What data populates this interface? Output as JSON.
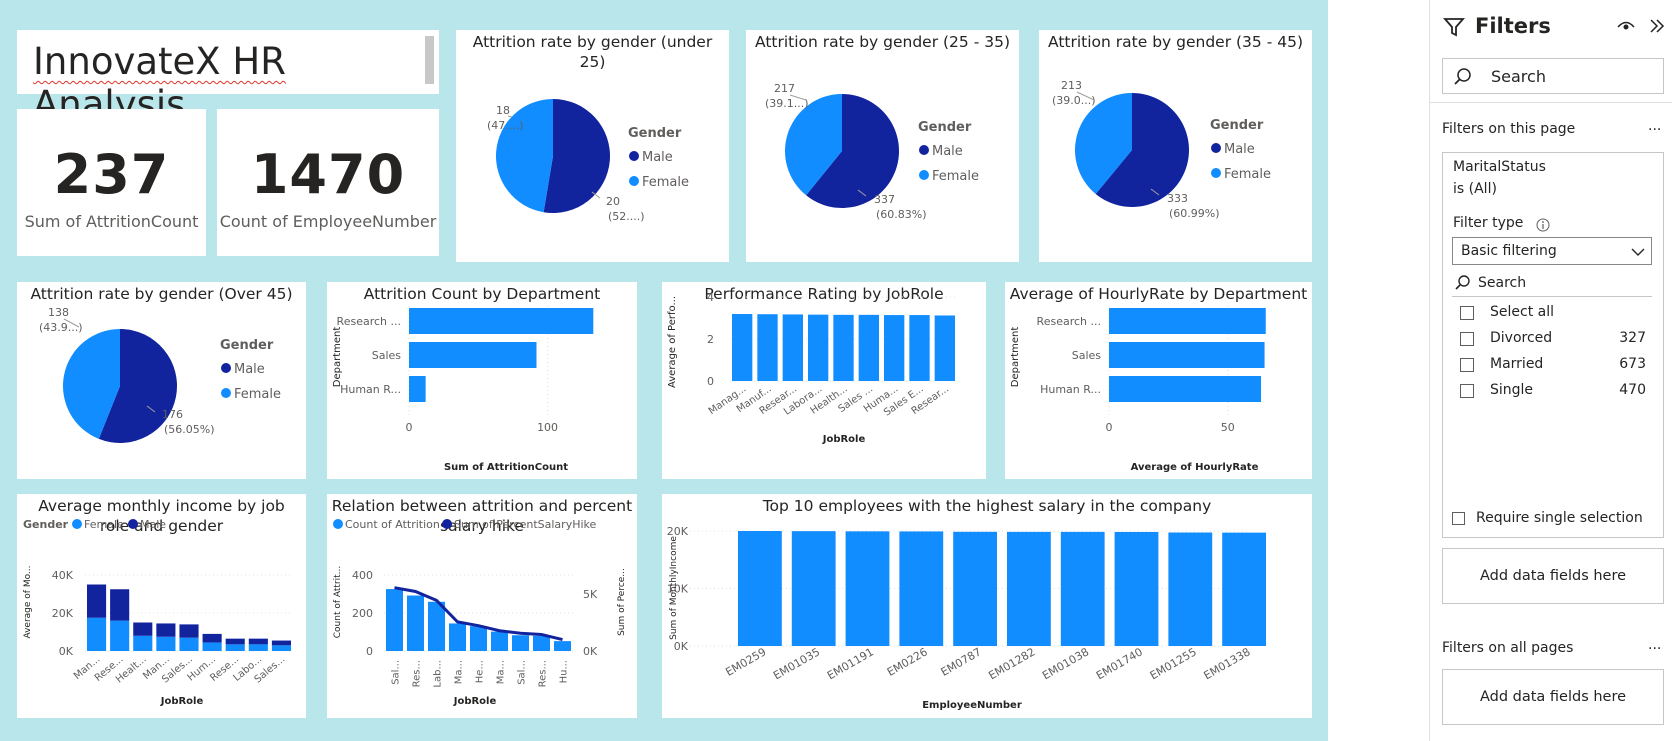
{
  "report": {
    "title": "InnovateX HR Analysis"
  },
  "kpis": [
    {
      "value": "237",
      "label": "Sum of AttritionCount"
    },
    {
      "value": "1470",
      "label": "Count of EmployeeNumber"
    }
  ],
  "pies": [
    {
      "title": "Attrition rate by gender (under 25)",
      "legend_title": "Gender",
      "legend": [
        "Male",
        "Female"
      ],
      "slices": [
        {
          "name": "Male",
          "value": 20,
          "label1": "20",
          "label2": "(52....)"
        },
        {
          "name": "Female",
          "value": 18,
          "label1": "18",
          "label2": "(47....)"
        }
      ]
    },
    {
      "title": "Attrition rate by gender (25 - 35)",
      "legend_title": "Gender",
      "legend": [
        "Male",
        "Female"
      ],
      "slices": [
        {
          "name": "Male",
          "value": 337,
          "label1": "337",
          "label2": "(60.83%)"
        },
        {
          "name": "Female",
          "value": 217,
          "label1": "217",
          "label2": "(39.1...)"
        }
      ]
    },
    {
      "title": "Attrition rate by gender (35 - 45)",
      "legend_title": "Gender",
      "legend": [
        "Male",
        "Female"
      ],
      "slices": [
        {
          "name": "Male",
          "value": 333,
          "label1": "333",
          "label2": "(60.99%)"
        },
        {
          "name": "Female",
          "value": 213,
          "label1": "213",
          "label2": "(39.0...)"
        }
      ]
    },
    {
      "title": "Attrition rate by gender (Over 45)",
      "legend_title": "Gender",
      "legend": [
        "Male",
        "Female"
      ],
      "slices": [
        {
          "name": "Male",
          "value": 176,
          "label1": "176",
          "label2": "(56.05%)"
        },
        {
          "name": "Female",
          "value": 138,
          "label1": "138",
          "label2": "(43.9...)"
        }
      ]
    }
  ],
  "colors": {
    "male": "#12239e",
    "female": "#118dff",
    "canvas": "#b8e6ea",
    "line": "#12239e"
  },
  "chart_data": [
    {
      "type": "bar",
      "orientation": "horizontal",
      "title": "Attrition Count by Department",
      "categories": [
        "Research ...",
        "Sales",
        "Human R..."
      ],
      "values": [
        133,
        92,
        12
      ],
      "xlabel": "Sum of AttritionCount",
      "ylabel": "Department",
      "xticks": [
        "0",
        "100"
      ],
      "xlim": [
        0,
        140
      ]
    },
    {
      "type": "bar",
      "title": "Performance Rating by JobRole",
      "categories": [
        "Manag...",
        "Manuf...",
        "Resear...",
        "Labora...",
        "Health...",
        "Sales ...",
        "Huma...",
        "Sales E...",
        "Resear..."
      ],
      "values": [
        3.19,
        3.18,
        3.17,
        3.16,
        3.15,
        3.15,
        3.14,
        3.14,
        3.12
      ],
      "xlabel": "JobRole",
      "ylabel": "Average of Perfo...",
      "yticks": [
        "0",
        "2",
        "4"
      ],
      "ylim": [
        0,
        4
      ]
    },
    {
      "type": "bar",
      "orientation": "horizontal",
      "title": "Average of HourlyRate by Department",
      "categories": [
        "Research ...",
        "Sales",
        "Human R..."
      ],
      "values": [
        66,
        65.5,
        64
      ],
      "xlabel": "Average of HourlyRate",
      "ylabel": "Department",
      "xticks": [
        "0",
        "50"
      ],
      "xlim": [
        0,
        72
      ]
    },
    {
      "type": "bar",
      "stacked": true,
      "title": "Average monthly income by job role and gender",
      "legend_title": "Gender",
      "series_names": [
        "Female",
        "Male"
      ],
      "categories": [
        "Man...",
        "Rese...",
        "Healt...",
        "Man...",
        "Sales...",
        "Hum...",
        "Rese...",
        "Labo...",
        "Sales..."
      ],
      "series": [
        {
          "name": "Female",
          "values": [
            17500,
            16000,
            8000,
            7500,
            7000,
            4500,
            3500,
            3500,
            3000
          ]
        },
        {
          "name": "Male",
          "values": [
            17500,
            16500,
            7000,
            7000,
            7000,
            4500,
            3000,
            3000,
            2500
          ]
        }
      ],
      "xlabel": "JobRole",
      "ylabel": "Average of Mo...",
      "yticks": [
        "0K",
        "20K",
        "40K"
      ],
      "ylim": [
        0,
        40000
      ]
    },
    {
      "type": "bar+line",
      "title": "Relation between attrition and percent salary hike",
      "legend": [
        "Count of Attrition",
        "Sum of PercentSalaryHike"
      ],
      "categories": [
        "Sal...",
        "Res...",
        "Lab...",
        "Ma...",
        "He...",
        "Ma...",
        "Sal...",
        "Res...",
        "Hu..."
      ],
      "bar_values": [
        326,
        292,
        259,
        145,
        131,
        102,
        83,
        80,
        52
      ],
      "line_values": [
        5000,
        4700,
        4000,
        2300,
        2000,
        1600,
        1400,
        1300,
        900
      ],
      "xlabel": "JobRole",
      "ylabel": "Count of Attrit...",
      "y2label": "Sum of Perce...",
      "yticks": [
        "0",
        "200",
        "400"
      ],
      "ylim": [
        0,
        400
      ],
      "y2ticks": [
        "0K",
        "5K"
      ],
      "y2lim": [
        0,
        6000
      ]
    },
    {
      "type": "bar",
      "title": "Top 10 employees with the highest salary in the company",
      "categories": [
        "EM0259",
        "EM01035",
        "EM01191",
        "EM0226",
        "EM0787",
        "EM01282",
        "EM01038",
        "EM01740",
        "EM01255",
        "EM01338"
      ],
      "values": [
        19999,
        19973,
        19943,
        19926,
        19859,
        19847,
        19845,
        19833,
        19740,
        19717
      ],
      "xlabel": "EmployeeNumber",
      "ylabel": "Sum of MonthlyIncome",
      "yticks": [
        "0K",
        "10K",
        "20K"
      ],
      "ylim": [
        0,
        20000
      ]
    }
  ],
  "filters": {
    "title": "Filters",
    "search_placeholder": "Search",
    "on_this_page": "Filters on this page",
    "field": "MaritalStatus",
    "field_state": "is (All)",
    "filter_type_label": "Filter type",
    "filter_type_value": "Basic filtering",
    "inner_search_placeholder": "Search",
    "options": [
      {
        "label": "Select all",
        "count": ""
      },
      {
        "label": "Divorced",
        "count": "327"
      },
      {
        "label": "Married",
        "count": "673"
      },
      {
        "label": "Single",
        "count": "470"
      }
    ],
    "require_single": "Require single selection",
    "add_fields": "Add data fields here",
    "on_all_pages": "Filters on all pages",
    "add_fields_all": "Add data fields here",
    "more": "..."
  }
}
